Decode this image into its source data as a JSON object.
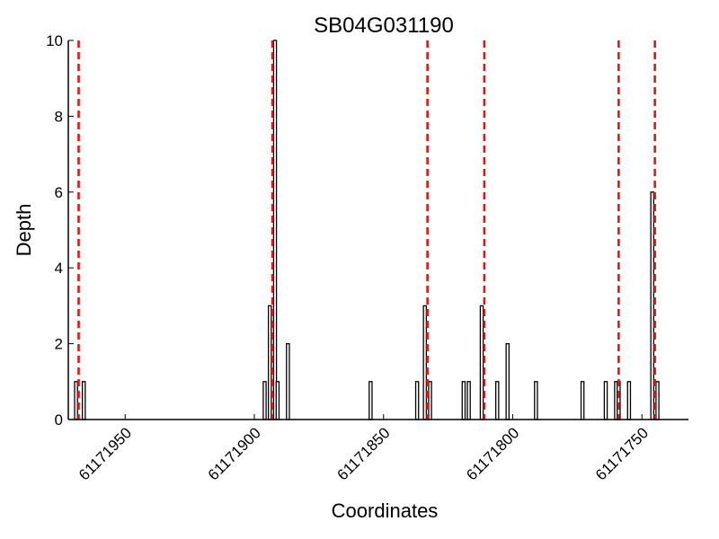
{
  "chart_data": {
    "type": "bar",
    "title": "SB04G031190",
    "xlabel": "Coordinates",
    "ylabel": "Depth",
    "xlim": [
      61171972,
      61171732
    ],
    "ylim": [
      0,
      10
    ],
    "x_reversed": true,
    "xticks": [
      61171950,
      61171900,
      61171850,
      61171800,
      61171750
    ],
    "yticks": [
      0,
      2,
      4,
      6,
      8,
      10
    ],
    "grid": false,
    "series": [
      {
        "x": [
          61171969,
          61171966,
          61171896,
          61171894,
          61171892,
          61171891,
          61171887,
          61171855,
          61171837,
          61171834,
          61171832,
          61171819,
          61171817,
          61171812,
          61171806,
          61171802,
          61171791,
          61171773,
          61171764,
          61171760,
          61171759,
          61171755,
          61171746,
          61171744
        ],
        "values": [
          1,
          1,
          1,
          3,
          10,
          1,
          2,
          1,
          1,
          3,
          1,
          1,
          1,
          3,
          1,
          2,
          1,
          1,
          1,
          1,
          1,
          1,
          6,
          1
        ],
        "color": "#ffffff",
        "edge_color": "#000000"
      }
    ],
    "vlines": {
      "x": [
        61171968,
        61171893,
        61171833,
        61171811,
        61171759,
        61171745
      ],
      "color": "#ee1111",
      "style": "dashed"
    }
  }
}
